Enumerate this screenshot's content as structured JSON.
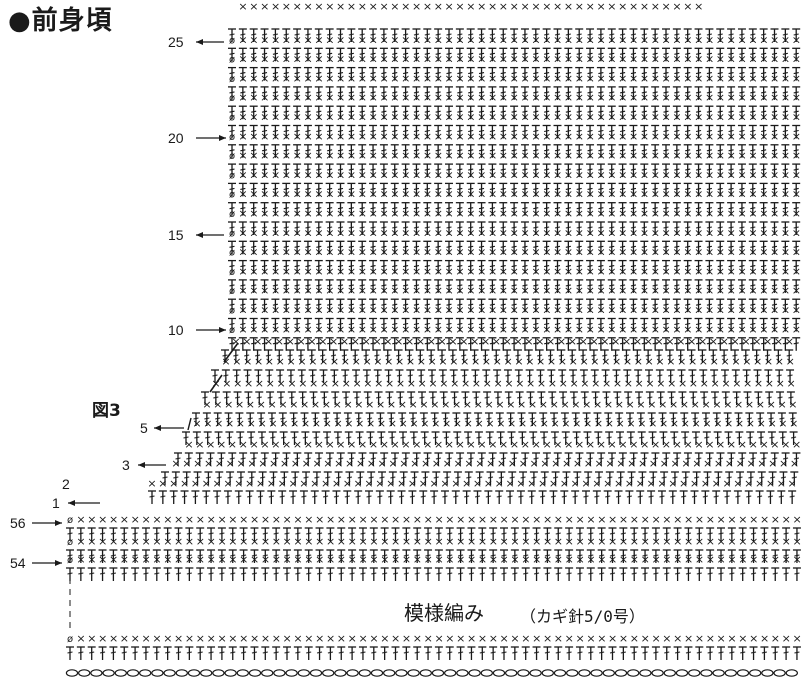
{
  "header": {
    "title": "●前身頃"
  },
  "figure": {
    "label": "図3"
  },
  "pattern": {
    "name": "模様編み",
    "hook": "（カギ針5/0号）"
  },
  "row_labels": [
    {
      "text": "25",
      "arrow": "left"
    },
    {
      "text": "20",
      "arrow": "right"
    },
    {
      "text": "15",
      "arrow": "left"
    },
    {
      "text": "10",
      "arrow": "right"
    },
    {
      "text": "5",
      "arrow": "left"
    },
    {
      "text": "3",
      "arrow": "left"
    },
    {
      "text": "2",
      "arrow": "none"
    },
    {
      "text": "1",
      "arrow": "left"
    },
    {
      "text": "56",
      "arrow": "right"
    },
    {
      "text": "54",
      "arrow": "right"
    }
  ],
  "symbols": {
    "single_crochet": "×",
    "chain": "○",
    "slip_stitch": "•",
    "turning_chain": "ø"
  }
}
